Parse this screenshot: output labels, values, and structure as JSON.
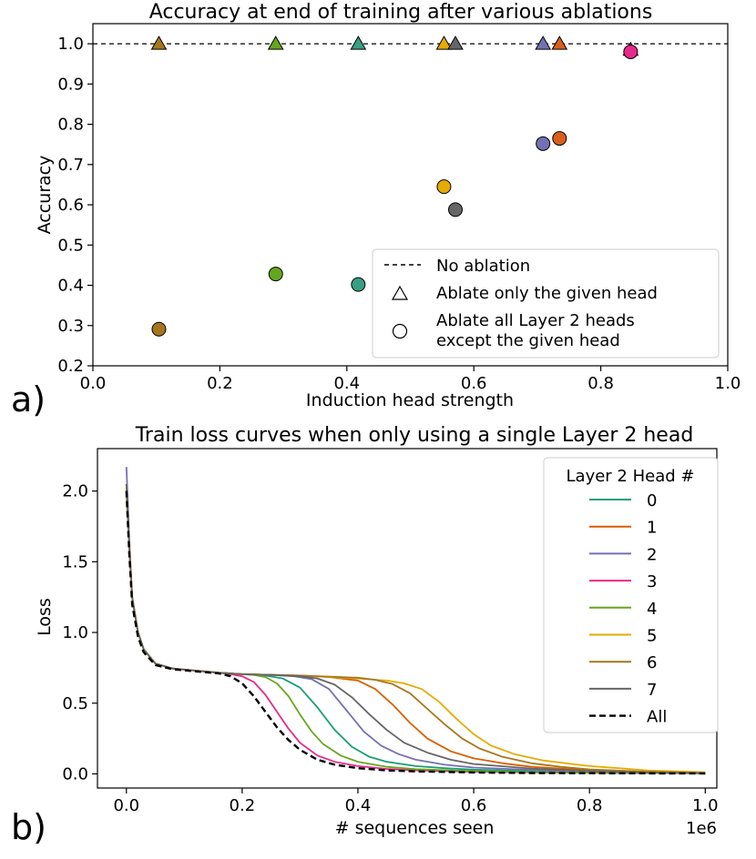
{
  "panels": {
    "a": {
      "label": "a)"
    },
    "b": {
      "label": "b)"
    }
  },
  "chart_data": [
    {
      "id": "ablation-accuracy",
      "type": "scatter",
      "title": "Accuracy at end of training after various ablations",
      "xlabel": "Induction head strength",
      "ylabel": "Accuracy",
      "xlim": [
        0.0,
        1.0
      ],
      "ylim": [
        0.2,
        1.05
      ],
      "xticks": [
        0.0,
        0.2,
        0.4,
        0.6,
        0.8,
        1.0
      ],
      "xtick_labels": [
        "0.0",
        "0.2",
        "0.4",
        "0.6",
        "0.8",
        "1.0"
      ],
      "yticks": [
        0.2,
        0.3,
        0.4,
        0.5,
        0.6,
        0.7,
        0.8,
        0.9,
        1.0
      ],
      "ytick_labels": [
        "0.2",
        "0.3",
        "0.4",
        "0.5",
        "0.6",
        "0.7",
        "0.8",
        "0.9",
        "1.0"
      ],
      "grid": false,
      "legend": {
        "position": "lower-right",
        "entries": [
          {
            "marker": "dashed-line",
            "label": "No ablation"
          },
          {
            "marker": "triangle",
            "label": "Ablate only the given head"
          },
          {
            "marker": "circle",
            "label": "Ablate all Layer 2 heads",
            "label2": "except the given head"
          }
        ]
      },
      "baseline": {
        "name": "No ablation",
        "y": 1.0
      },
      "heads": [
        {
          "head": 0,
          "color": "#3a9e82",
          "x": 0.418,
          "triangle_y": 1.0,
          "circle_y": 0.402
        },
        {
          "head": 1,
          "color": "#d95f1c",
          "x": 0.735,
          "triangle_y": 1.0,
          "circle_y": 0.765
        },
        {
          "head": 2,
          "color": "#7570b3",
          "x": 0.709,
          "triangle_y": 1.0,
          "circle_y": 0.752
        },
        {
          "head": 3,
          "color": "#e7298a",
          "x": 0.847,
          "triangle_y": 0.985,
          "circle_y": 0.98
        },
        {
          "head": 4,
          "color": "#66a61e",
          "x": 0.288,
          "triangle_y": 1.0,
          "circle_y": 0.428
        },
        {
          "head": 5,
          "color": "#e6ab02",
          "x": 0.553,
          "triangle_y": 1.0,
          "circle_y": 0.645
        },
        {
          "head": 6,
          "color": "#a6761d",
          "x": 0.104,
          "triangle_y": 1.0,
          "circle_y": 0.291
        },
        {
          "head": 7,
          "color": "#666666",
          "x": 0.571,
          "triangle_y": 1.0,
          "circle_y": 0.588
        }
      ]
    },
    {
      "id": "train-loss",
      "type": "line",
      "title": "Train loss curves when only using a single Layer 2 head",
      "xlabel": "# sequences seen",
      "ylabel": "Loss",
      "x_offset_label": "1e6",
      "xlim": [
        -0.05,
        1.02
      ],
      "ylim": [
        -0.1,
        2.3
      ],
      "xticks": [
        0.0,
        0.2,
        0.4,
        0.6,
        0.8,
        1.0
      ],
      "xtick_labels": [
        "0.0",
        "0.2",
        "0.4",
        "0.6",
        "0.8",
        "1.0"
      ],
      "yticks": [
        0.0,
        0.5,
        1.0,
        1.5,
        2.0
      ],
      "ytick_labels": [
        "0.0",
        "0.5",
        "1.0",
        "1.5",
        "2.0"
      ],
      "grid": false,
      "legend": {
        "position": "top-right",
        "title": "Layer 2 Head #"
      },
      "series": [
        {
          "name": "0",
          "color": "#1b9e77",
          "style": "solid",
          "x": [
            0,
            0.005,
            0.01,
            0.02,
            0.03,
            0.05,
            0.08,
            0.12,
            0.16,
            0.2,
            0.24,
            0.27,
            0.3,
            0.33,
            0.36,
            0.39,
            0.42,
            0.45,
            0.5,
            0.55,
            0.6,
            0.7,
            0.8,
            0.9,
            1.0
          ],
          "y": [
            2.0,
            1.6,
            1.25,
            1.0,
            0.88,
            0.78,
            0.745,
            0.73,
            0.715,
            0.705,
            0.695,
            0.675,
            0.61,
            0.47,
            0.31,
            0.19,
            0.12,
            0.085,
            0.055,
            0.04,
            0.03,
            0.02,
            0.012,
            0.008,
            0.005
          ]
        },
        {
          "name": "1",
          "color": "#d95f02",
          "style": "solid",
          "x": [
            0,
            0.005,
            0.01,
            0.02,
            0.03,
            0.05,
            0.08,
            0.12,
            0.16,
            0.2,
            0.25,
            0.3,
            0.35,
            0.4,
            0.43,
            0.46,
            0.49,
            0.52,
            0.56,
            0.6,
            0.65,
            0.7,
            0.8,
            0.9,
            1.0
          ],
          "y": [
            2.05,
            1.6,
            1.25,
            1.0,
            0.88,
            0.78,
            0.745,
            0.73,
            0.715,
            0.705,
            0.7,
            0.695,
            0.685,
            0.66,
            0.6,
            0.49,
            0.36,
            0.25,
            0.16,
            0.11,
            0.075,
            0.05,
            0.025,
            0.012,
            0.006
          ]
        },
        {
          "name": "2",
          "color": "#7570b3",
          "style": "solid",
          "x": [
            0,
            0.005,
            0.01,
            0.02,
            0.03,
            0.05,
            0.08,
            0.12,
            0.16,
            0.2,
            0.25,
            0.29,
            0.32,
            0.35,
            0.38,
            0.41,
            0.44,
            0.47,
            0.5,
            0.55,
            0.6,
            0.7,
            0.8,
            0.9,
            1.0
          ],
          "y": [
            2.17,
            1.65,
            1.25,
            1.0,
            0.88,
            0.78,
            0.745,
            0.73,
            0.715,
            0.705,
            0.7,
            0.69,
            0.67,
            0.6,
            0.45,
            0.3,
            0.2,
            0.14,
            0.1,
            0.065,
            0.045,
            0.028,
            0.015,
            0.008,
            0.005
          ]
        },
        {
          "name": "3",
          "color": "#e7298a",
          "style": "solid",
          "x": [
            0,
            0.005,
            0.01,
            0.02,
            0.03,
            0.05,
            0.08,
            0.12,
            0.16,
            0.18,
            0.2,
            0.22,
            0.24,
            0.26,
            0.28,
            0.3,
            0.33,
            0.36,
            0.4,
            0.45,
            0.5,
            0.6,
            0.7,
            0.85,
            1.0
          ],
          "y": [
            2.0,
            1.6,
            1.25,
            1.0,
            0.88,
            0.78,
            0.745,
            0.73,
            0.715,
            0.705,
            0.69,
            0.65,
            0.56,
            0.44,
            0.32,
            0.22,
            0.13,
            0.085,
            0.055,
            0.035,
            0.025,
            0.015,
            0.01,
            0.006,
            0.004
          ]
        },
        {
          "name": "4",
          "color": "#66a61e",
          "style": "solid",
          "x": [
            0,
            0.005,
            0.01,
            0.02,
            0.03,
            0.05,
            0.08,
            0.12,
            0.16,
            0.2,
            0.22,
            0.24,
            0.26,
            0.28,
            0.3,
            0.32,
            0.34,
            0.37,
            0.4,
            0.45,
            0.5,
            0.6,
            0.7,
            0.85,
            1.0
          ],
          "y": [
            2.0,
            1.6,
            1.25,
            1.0,
            0.88,
            0.78,
            0.745,
            0.73,
            0.715,
            0.705,
            0.7,
            0.685,
            0.64,
            0.55,
            0.42,
            0.3,
            0.21,
            0.13,
            0.085,
            0.05,
            0.033,
            0.02,
            0.012,
            0.007,
            0.004
          ]
        },
        {
          "name": "5",
          "color": "#e6ab02",
          "style": "solid",
          "x": [
            0,
            0.005,
            0.01,
            0.02,
            0.03,
            0.05,
            0.08,
            0.12,
            0.16,
            0.2,
            0.3,
            0.4,
            0.45,
            0.48,
            0.51,
            0.54,
            0.57,
            0.6,
            0.63,
            0.67,
            0.72,
            0.8,
            0.85,
            0.9,
            1.0
          ],
          "y": [
            2.05,
            1.6,
            1.25,
            1.0,
            0.88,
            0.78,
            0.745,
            0.73,
            0.715,
            0.705,
            0.695,
            0.675,
            0.66,
            0.64,
            0.6,
            0.51,
            0.39,
            0.28,
            0.2,
            0.14,
            0.095,
            0.055,
            0.04,
            0.025,
            0.012
          ]
        },
        {
          "name": "6",
          "color": "#a6761d",
          "style": "solid",
          "x": [
            0,
            0.005,
            0.01,
            0.02,
            0.03,
            0.05,
            0.08,
            0.12,
            0.16,
            0.2,
            0.3,
            0.4,
            0.43,
            0.46,
            0.49,
            0.52,
            0.55,
            0.58,
            0.61,
            0.65,
            0.7,
            0.75,
            0.8,
            0.9,
            1.0
          ],
          "y": [
            2.05,
            1.6,
            1.25,
            1.0,
            0.88,
            0.78,
            0.745,
            0.73,
            0.715,
            0.705,
            0.695,
            0.68,
            0.665,
            0.635,
            0.57,
            0.46,
            0.35,
            0.25,
            0.18,
            0.12,
            0.075,
            0.05,
            0.032,
            0.015,
            0.007
          ]
        },
        {
          "name": "7",
          "color": "#666666",
          "style": "solid",
          "x": [
            0,
            0.005,
            0.01,
            0.02,
            0.03,
            0.05,
            0.08,
            0.12,
            0.16,
            0.2,
            0.25,
            0.3,
            0.33,
            0.36,
            0.39,
            0.42,
            0.45,
            0.48,
            0.52,
            0.56,
            0.6,
            0.7,
            0.8,
            0.9,
            1.0
          ],
          "y": [
            2.05,
            1.6,
            1.25,
            1.0,
            0.88,
            0.78,
            0.745,
            0.73,
            0.715,
            0.705,
            0.7,
            0.69,
            0.675,
            0.63,
            0.54,
            0.42,
            0.31,
            0.22,
            0.15,
            0.1,
            0.07,
            0.038,
            0.02,
            0.01,
            0.005
          ]
        },
        {
          "name": "All",
          "color": "#000000",
          "style": "dashed",
          "x": [
            0,
            0.005,
            0.01,
            0.02,
            0.03,
            0.05,
            0.08,
            0.12,
            0.16,
            0.18,
            0.2,
            0.22,
            0.24,
            0.26,
            0.28,
            0.3,
            0.33,
            0.36,
            0.4,
            0.45,
            0.5,
            0.6,
            0.7,
            0.85,
            1.0
          ],
          "y": [
            2.0,
            1.55,
            1.2,
            0.97,
            0.86,
            0.77,
            0.74,
            0.725,
            0.71,
            0.69,
            0.64,
            0.55,
            0.44,
            0.33,
            0.24,
            0.17,
            0.1,
            0.065,
            0.04,
            0.025,
            0.018,
            0.01,
            0.006,
            0.004,
            0.003
          ]
        }
      ]
    }
  ]
}
